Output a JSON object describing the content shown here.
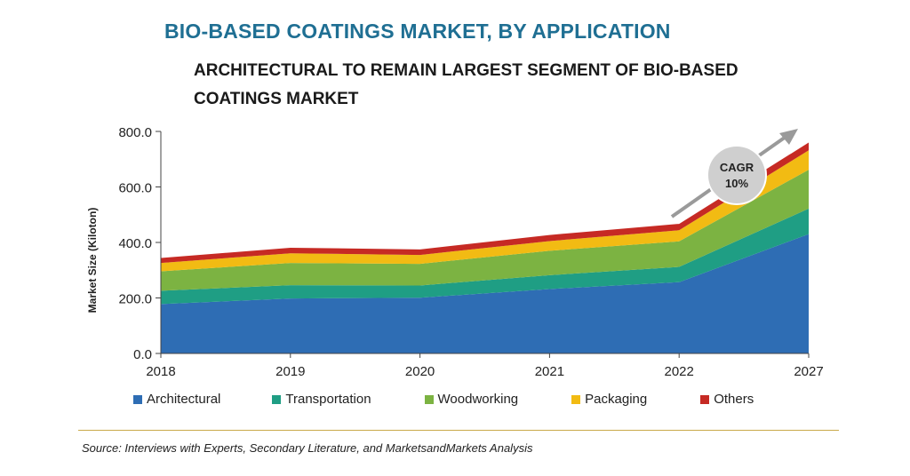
{
  "header": {
    "title": "BIO-BASED COATINGS MARKET, BY APPLICATION",
    "subtitle": "ARCHITECTURAL TO REMAIN LARGEST SEGMENT OF BIO-BASED COATINGS MARKET"
  },
  "source": "Source: Interviews with Experts, Secondary Literature, and MarketsandMarkets Analysis",
  "cagr": {
    "label": "CAGR",
    "value": "10%"
  },
  "chart_data": {
    "type": "area",
    "stacked": true,
    "title": "BIO-BASED COATINGS MARKET, BY APPLICATION",
    "ylabel": "Market Size (Kiloton)",
    "xlabel": "",
    "categories": [
      "2018",
      "2019",
      "2020",
      "2021",
      "2022",
      "2027"
    ],
    "ylim": [
      0,
      800
    ],
    "yticks": [
      "0.0",
      "200.0",
      "400.0",
      "600.0",
      "800.0"
    ],
    "legend_position": "bottom",
    "series": [
      {
        "name": "Architectural",
        "color": "#2e6db4",
        "values": [
          178,
          198,
          201,
          232,
          257,
          430
        ]
      },
      {
        "name": "Transportation",
        "color": "#1f9e84",
        "values": [
          48,
          48,
          44,
          50,
          55,
          92
        ]
      },
      {
        "name": "Woodworking",
        "color": "#7cb342",
        "values": [
          70,
          80,
          78,
          88,
          92,
          140
        ]
      },
      {
        "name": "Packaging",
        "color": "#f2bb13",
        "values": [
          30,
          35,
          32,
          35,
          40,
          70
        ]
      },
      {
        "name": "Others",
        "color": "#c62a24",
        "values": [
          18,
          20,
          20,
          22,
          23,
          28
        ]
      }
    ]
  }
}
